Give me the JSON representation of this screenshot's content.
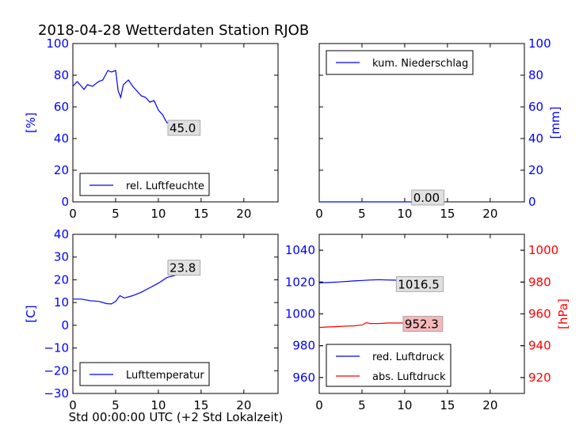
{
  "title": "2018-04-28 Wetterdaten Station RJOB",
  "xlabel": "Std 00:00:00 UTC (+2 Std Lokalzeit)",
  "colors": {
    "blue": "#0000ff",
    "red": "#ff0000",
    "label_bg": "#e0e0e0",
    "label_bg_red": "#f4b8b8"
  },
  "chart_data": [
    {
      "type": "line",
      "panel": "top-left",
      "ylabel": "[%]",
      "y_axis_side": "left",
      "xlim": [
        0,
        24
      ],
      "ylim": [
        0,
        100
      ],
      "xticks": [
        0,
        5,
        10,
        15,
        20
      ],
      "yticks": [
        0,
        20,
        40,
        60,
        80,
        100
      ],
      "legend": "lower-left",
      "series": [
        {
          "name": "rel. Luftfeuchte",
          "color": "#0000ff",
          "x": [
            0,
            0.5,
            1,
            1.3,
            1.7,
            2.3,
            3,
            3.5,
            3.8,
            4.1,
            4.5,
            5.0,
            5.3,
            5.6,
            5.9,
            6.5,
            7.0,
            7.5,
            8.0,
            8.5,
            9.0,
            9.5,
            10.0,
            10.5,
            11.0,
            11.5,
            12.0,
            12.5,
            13.0,
            13.5,
            14.0
          ],
          "values": [
            73,
            76,
            73,
            71,
            74,
            73,
            76,
            77,
            80,
            83,
            82,
            83,
            70,
            66,
            74,
            77,
            73,
            70,
            67,
            66,
            63,
            64,
            58,
            55,
            50,
            49,
            51,
            48,
            50,
            49,
            47
          ]
        }
      ],
      "annotation": {
        "x": 11.3,
        "y": 47,
        "text": "45.0"
      }
    },
    {
      "type": "line",
      "panel": "top-right",
      "ylabel": "[mm]",
      "y_axis_side": "right",
      "xlim": [
        0,
        24
      ],
      "ylim": [
        0,
        100
      ],
      "xticks": [
        0,
        5,
        10,
        15,
        20
      ],
      "yticks": [
        0,
        20,
        40,
        60,
        80,
        100
      ],
      "legend": "upper-left",
      "series": [
        {
          "name": "kum. Niederschlag",
          "color": "#0000ff",
          "x": [
            0,
            14
          ],
          "values": [
            0,
            0
          ]
        }
      ],
      "annotation": {
        "x": 11,
        "y": 3,
        "text": "0.00"
      }
    },
    {
      "type": "line",
      "panel": "bottom-left",
      "ylabel": "[C]",
      "y_axis_side": "left",
      "xlim": [
        0,
        24
      ],
      "ylim": [
        -30,
        40
      ],
      "xticks": [
        0,
        5,
        10,
        15,
        20
      ],
      "yticks": [
        -30,
        -20,
        -10,
        0,
        10,
        20,
        30,
        40
      ],
      "legend": "lower-left",
      "series": [
        {
          "name": "Lufttemperatur",
          "color": "#0000ff",
          "x": [
            0,
            1,
            2,
            3,
            4,
            4.5,
            5,
            5.5,
            6,
            7,
            8,
            9,
            10,
            11,
            12,
            13,
            14
          ],
          "values": [
            11.5,
            11.5,
            10.8,
            10.5,
            9.5,
            9.4,
            10.5,
            13,
            12,
            13,
            14.5,
            16.5,
            18.5,
            21,
            22,
            22.5,
            24
          ]
        }
      ],
      "annotation": {
        "x": 11.3,
        "y": 25.5,
        "text": "23.8"
      }
    },
    {
      "type": "line",
      "panel": "bottom-right",
      "ylabel": "",
      "y_axis_side": "left",
      "xlim": [
        0,
        24
      ],
      "ylim": [
        950,
        1050
      ],
      "xticks": [
        0,
        5,
        10,
        15,
        20
      ],
      "yticks": [
        960,
        980,
        1000,
        1020,
        1040
      ],
      "legend": "lower-left",
      "series": [
        {
          "name": "red. Luftdruck",
          "color": "#0000ff",
          "x": [
            0,
            1,
            2,
            3,
            4,
            5,
            6,
            7,
            8,
            9,
            10,
            11,
            12,
            13,
            14
          ],
          "values": [
            1019.5,
            1019.7,
            1020,
            1020.3,
            1020.7,
            1021,
            1021.3,
            1021.5,
            1021.3,
            1021.2,
            1021,
            1020,
            1018.5,
            1017.5,
            1016.5
          ]
        }
      ],
      "annotation": {
        "x": 9.2,
        "y": 1019,
        "text": "1016.5"
      },
      "secondary_axis": {
        "ylabel": "[hPa]",
        "ylim": [
          910,
          1010
        ],
        "yticks": [
          920,
          940,
          960,
          980,
          1000
        ],
        "color": "#ff0000",
        "series": [
          {
            "name": "abs. Luftdruck",
            "color": "#ff0000",
            "x": [
              0,
              1,
              2,
              3,
              4,
              5,
              5.5,
              6,
              7,
              8,
              9,
              10,
              11,
              12,
              13,
              14
            ],
            "values": [
              951.5,
              951.8,
              952,
              952.3,
              952.5,
              953,
              954.5,
              954,
              954,
              954.3,
              954.3,
              954.3,
              954,
              953.5,
              953.3,
              952.8
            ]
          }
        ],
        "annotation": {
          "x": 10,
          "y": 954,
          "text": "952.3"
        }
      }
    }
  ]
}
